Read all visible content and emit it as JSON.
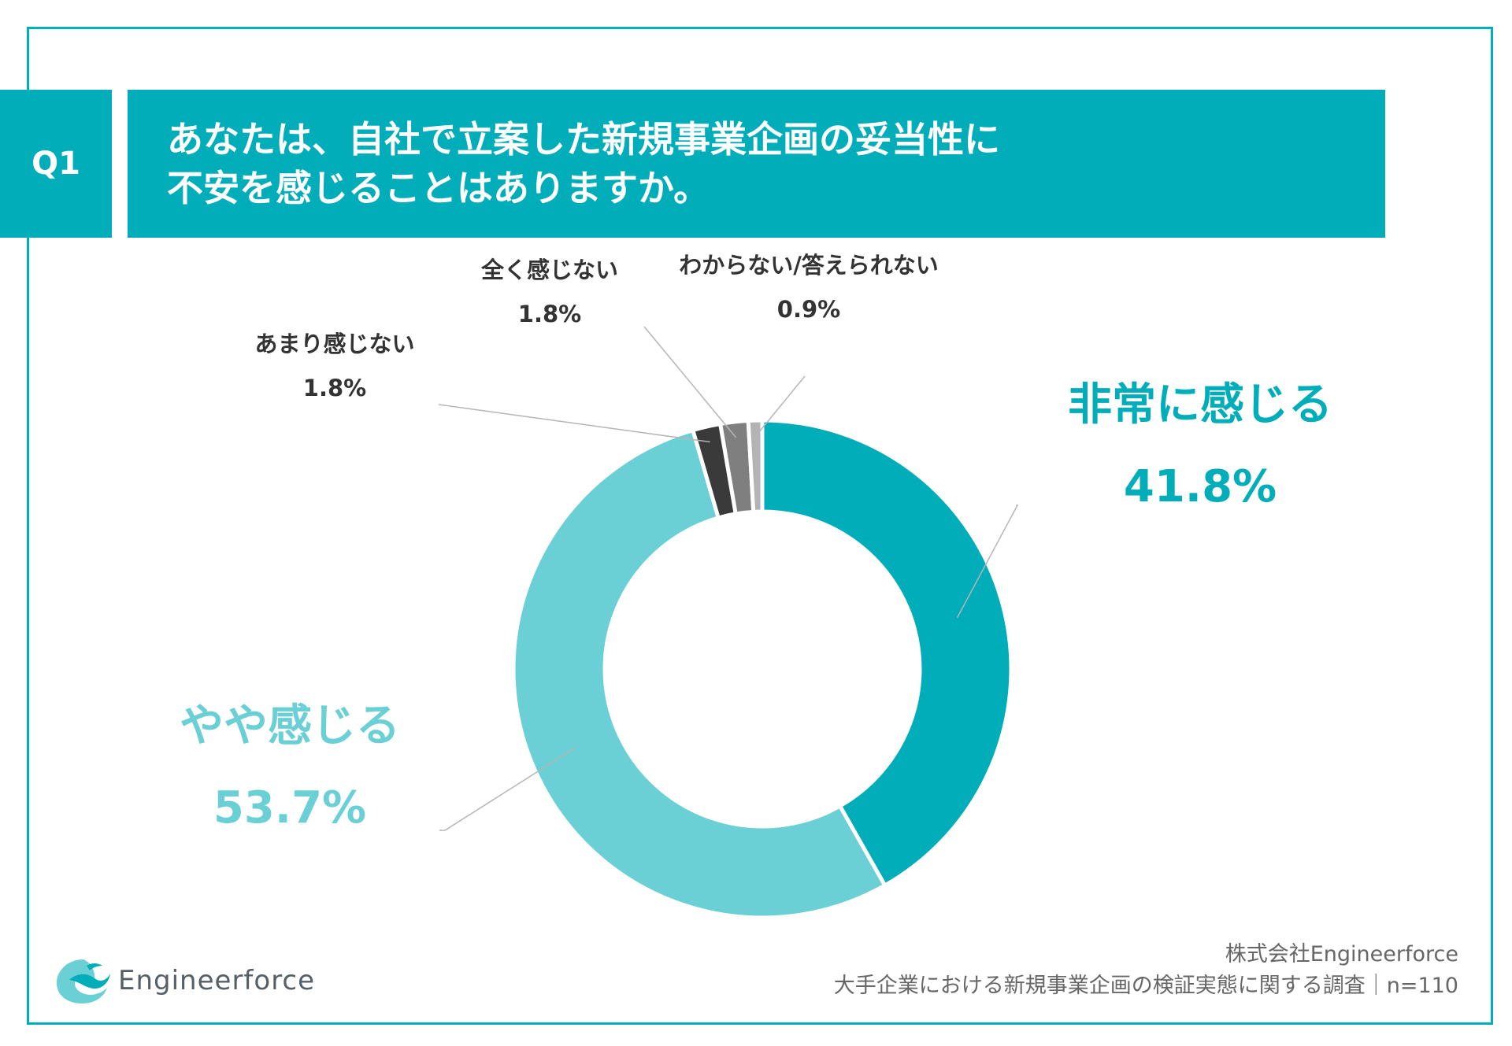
{
  "question": {
    "badge": "Q1",
    "line1": "あなたは、自社で立案した新規事業企画の妥当性に",
    "line2": "不安を感じることはありますか。"
  },
  "chart_data": {
    "type": "pie",
    "donut": true,
    "title": "あなたは、自社で立案した新規事業企画の妥当性に不安を感じることはありますか。",
    "categories": [
      "非常に感じる",
      "やや感じる",
      "あまり感じない",
      "全く感じない",
      "わからない/答えられない"
    ],
    "values": [
      41.8,
      53.7,
      1.8,
      1.8,
      0.9
    ],
    "labels": [
      "41.8%",
      "53.7%",
      "1.8%",
      "1.8%",
      "0.9%"
    ],
    "colors": [
      "#00adb9",
      "#6bcfd6",
      "#3a3a3a",
      "#7f7f7f",
      "#b3b3b3"
    ],
    "start": "12 o'clock",
    "direction": "clockwise"
  },
  "footer": {
    "company": "株式会社Engineerforce",
    "survey": "大手企業における新規事業企画の検証実態に関する調査｜n=110"
  },
  "logo": {
    "text": "Engineerforce",
    "icon": "wave-bird-icon"
  }
}
